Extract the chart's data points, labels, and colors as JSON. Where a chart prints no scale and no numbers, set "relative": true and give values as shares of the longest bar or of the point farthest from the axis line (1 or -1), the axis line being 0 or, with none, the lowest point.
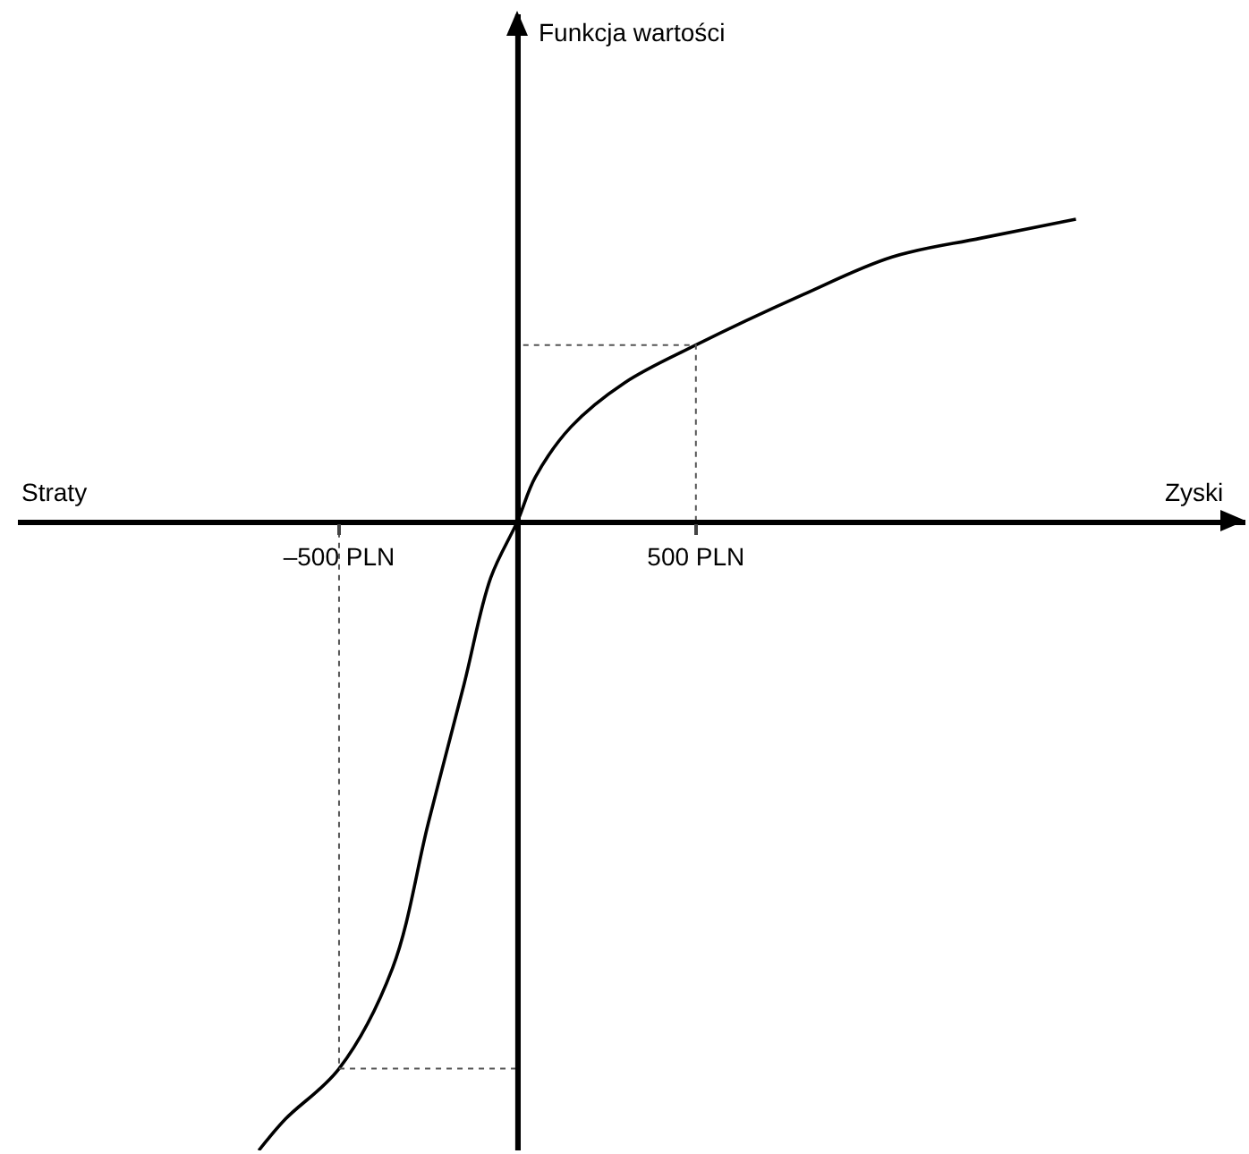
{
  "chart_data": {
    "type": "line",
    "relative": true,
    "xlabel": "Zyski",
    "annotations": [
      "Straty",
      "Funkcja wartości"
    ],
    "xlim": [
      -1400,
      2040
    ],
    "xticks": [
      {
        "value": -500,
        "label": "–500 PLN"
      },
      {
        "value": 500,
        "label": "500 PLN"
      }
    ],
    "grid": false,
    "marker": "none",
    "series": [
      {
        "color": "#000000",
        "line_style": "solid",
        "x": [
          -725,
          -650,
          -500,
          -350,
          -250,
          -150,
          -75,
          0,
          50,
          150,
          300,
          500,
          800,
          1050,
          1300,
          1565
        ],
        "values": [
          -1,
          -0.95,
          -0.87,
          -0.71,
          -0.48,
          -0.26,
          -0.09,
          0,
          0.07,
          0.15,
          0.22,
          0.28,
          0.36,
          0.42,
          0.45,
          0.48
        ]
      },
      {
        "color": "#555555",
        "line_style": "dotted",
        "x": [
          500,
          500,
          0
        ],
        "values": [
          0,
          0.28,
          0.28
        ]
      },
      {
        "color": "#555555",
        "line_style": "dotted",
        "x": [
          -500,
          -500,
          0
        ],
        "values": [
          0,
          -0.87,
          -0.87
        ]
      }
    ]
  }
}
